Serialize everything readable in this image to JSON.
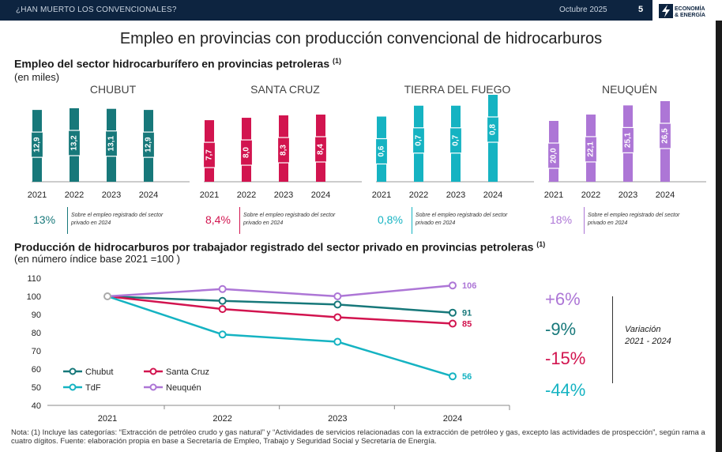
{
  "header": {
    "left": "¿HAN MUERTO LOS CONVENCIONALES?",
    "date": "Octubre 2025",
    "page": "5",
    "logo_line1": "ECONOMÍA",
    "logo_line2": "& ENERGÍA"
  },
  "title": "Empleo en provincias con producción convencional de hidrocarburos",
  "section1": {
    "title": "Empleo del sector hidrocarburífero en provincias petroleras",
    "title_sup": "(1)",
    "subtitle": "(en miles)"
  },
  "section2": {
    "title": "Producción de hidrocarburos por trabajador registrado del sector privado en provincias petroleras",
    "title_sup": "(1)",
    "subtitle": "(en número índice base 2021 =100 )"
  },
  "chart_data": [
    {
      "type": "bar",
      "title": "CHUBUT",
      "categories": [
        "2021",
        "2022",
        "2023",
        "2024"
      ],
      "values": [
        12.9,
        13.2,
        13.1,
        12.9
      ],
      "labels": [
        "12,9",
        "13,2",
        "13,1",
        "12,9"
      ],
      "color": "#17787a",
      "share": "13%",
      "share_note": "Sobre el empleo registrado del sector privado en 2024"
    },
    {
      "type": "bar",
      "title": "SANTA CRUZ",
      "categories": [
        "2021",
        "2022",
        "2023",
        "2024"
      ],
      "values": [
        7.7,
        8.0,
        8.3,
        8.4
      ],
      "labels": [
        "7,7",
        "8,0",
        "8,3",
        "8,4"
      ],
      "color": "#d2144f",
      "share": "8,4%",
      "share_note": "Sobre el empleo registrado del sector privado en 2024"
    },
    {
      "type": "bar",
      "title": "TIERRA DEL FUEGO",
      "categories": [
        "2021",
        "2022",
        "2023",
        "2024"
      ],
      "values": [
        0.6,
        0.7,
        0.7,
        0.8
      ],
      "labels": [
        "0,6",
        "0,7",
        "0,7",
        "0,8"
      ],
      "color": "#15b3c2",
      "share": "0,8%",
      "share_note": "Sobre el empleo registrado del sector privado en 2024"
    },
    {
      "type": "bar",
      "title": "NEUQUÉN",
      "categories": [
        "2021",
        "2022",
        "2023",
        "2024"
      ],
      "values": [
        20.0,
        22.1,
        25.1,
        26.5
      ],
      "labels": [
        "20,0",
        "22,1",
        "25,1",
        "26,5"
      ],
      "color": "#ad76d6",
      "share": "18%",
      "share_note": "Sobre el empleo registrado del sector privado en 2024"
    },
    {
      "type": "line",
      "x": [
        "2021",
        "2022",
        "2023",
        "2024"
      ],
      "ylim": [
        40,
        110
      ],
      "yticks": [
        40,
        50,
        60,
        70,
        80,
        90,
        100,
        110
      ],
      "series": [
        {
          "name": "Chubut",
          "values": [
            100,
            97.5,
            95.5,
            91
          ],
          "end_label": "91",
          "color": "#17787a",
          "variation": "-9%"
        },
        {
          "name": "Santa Cruz",
          "values": [
            100,
            93,
            88.5,
            85
          ],
          "end_label": "85",
          "color": "#d2144f",
          "variation": "-15%"
        },
        {
          "name": "TdF",
          "values": [
            100,
            79,
            75,
            56
          ],
          "end_label": "56",
          "color": "#15b3c2",
          "variation": "-44%"
        },
        {
          "name": "Neuquén",
          "values": [
            100,
            104,
            100,
            106
          ],
          "end_label": "106",
          "color": "#ad76d6",
          "variation": "+6%"
        }
      ],
      "legend": "bottom-left",
      "variation_label_1": "Variación",
      "variation_label_2": "2021 - 2024"
    }
  ],
  "note": "Nota: (1) Incluye las categorías: “Extracción de petróleo crudo y gas natural” y “Actividades  de servicios relacionadas con la extracción de petróleo y gas, excepto las actividades de prospección”, según rama a cuatro dígitos. Fuente: elaboración propia en base a Secretaría de Empleo, Trabajo y Seguridad Social y Secretaría de Energía."
}
